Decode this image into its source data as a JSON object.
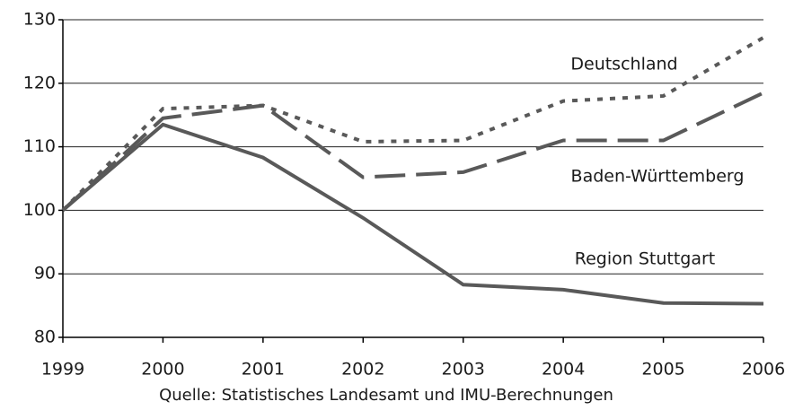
{
  "chart_data": {
    "type": "line",
    "x": [
      "1999",
      "2000",
      "2001",
      "2002",
      "2003",
      "2004",
      "2005",
      "2006"
    ],
    "series": [
      {
        "name": "Deutschland",
        "color": "#595959",
        "dash": "dotted",
        "values": [
          100,
          116,
          116.5,
          110.8,
          111,
          117.2,
          118,
          127.2
        ]
      },
      {
        "name": "Baden-Württemberg",
        "color": "#595959",
        "dash": "dashed",
        "values": [
          100,
          114.5,
          116.5,
          105.2,
          106,
          111,
          111,
          118.5
        ]
      },
      {
        "name": "Region Stuttgart",
        "color": "#595959",
        "dash": "solid",
        "values": [
          100,
          113.5,
          108.3,
          98.8,
          88.3,
          87.5,
          85.4,
          85.3
        ]
      }
    ],
    "ylim": [
      80,
      130
    ],
    "yticks": [
      80,
      90,
      100,
      110,
      120,
      130
    ],
    "grid": true,
    "source": "Quelle: Statistisches Landesamt und IMU-Berechnungen"
  }
}
